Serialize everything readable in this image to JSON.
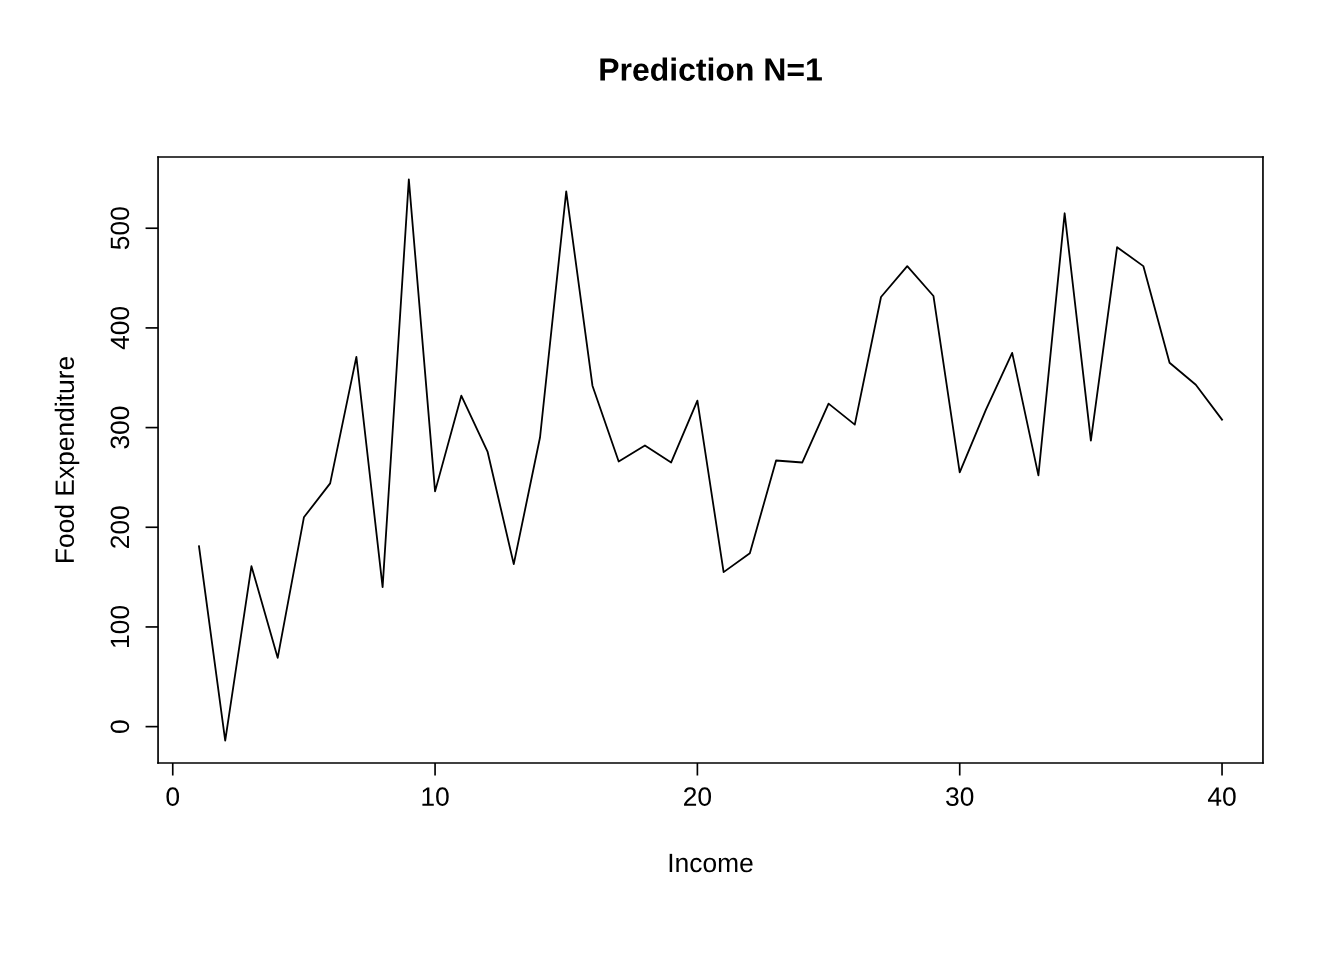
{
  "chart_data": {
    "type": "line",
    "title": "Prediction N=1",
    "xlabel": "Income",
    "ylabel": "Food Expenditure",
    "x": [
      1,
      2,
      3,
      4,
      5,
      6,
      7,
      8,
      9,
      10,
      11,
      12,
      13,
      14,
      15,
      16,
      17,
      18,
      19,
      20,
      21,
      22,
      23,
      24,
      25,
      26,
      27,
      28,
      29,
      30,
      31,
      32,
      33,
      34,
      35,
      36,
      37,
      38,
      39,
      40
    ],
    "series": [
      {
        "color": "#000000",
        "values": [
          181,
          -14,
          161,
          69,
          210,
          244,
          371,
          140,
          549,
          236,
          332,
          276,
          163,
          290,
          537,
          342,
          266,
          282,
          265,
          327,
          155,
          174,
          267,
          265,
          324,
          303,
          431,
          462,
          432,
          255,
          318,
          375,
          252,
          515,
          287,
          481,
          462,
          365,
          343,
          308
        ]
      }
    ],
    "xlim": [
      -0.56,
      41.56
    ],
    "ylim": [
      -36.5,
      571.5
    ],
    "xticks": [
      0,
      10,
      20,
      30,
      40
    ],
    "yticks": [
      0,
      100,
      200,
      300,
      400,
      500
    ],
    "grid": false,
    "legend": false,
    "marker": "none",
    "line_style": "solid"
  }
}
